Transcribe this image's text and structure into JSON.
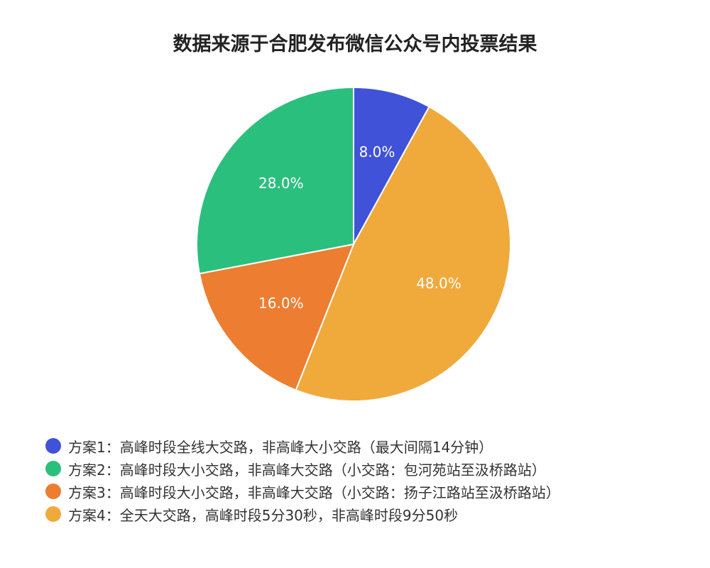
{
  "chart_data": {
    "type": "pie",
    "title": "数据来源于合肥发布微信公众号内投票结果",
    "slices": [
      {
        "label": "方案1：高峰时段全线大交路，非高峰大小交路（最大间隔14分钟）",
        "value": 8.0,
        "display": "8.0%",
        "color": "#4052d8"
      },
      {
        "label": "方案2：高峰时段大小交路，非高峰大交路（小交路：包河苑站至汲桥路站）",
        "value": 28.0,
        "display": "28.0%",
        "color": "#2bbf7e"
      },
      {
        "label": "方案3：高峰时段大小交路，非高峰大交路（小交路：扬子江路站至汲桥路站）",
        "value": 16.0,
        "display": "16.0%",
        "color": "#ed7d31"
      },
      {
        "label": "方案4：全天大交路，高峰时段5分30秒，非高峰时段9分50秒",
        "value": 48.0,
        "display": "48.0%",
        "color": "#f0a93b"
      }
    ],
    "draw_order": [
      0,
      3,
      2,
      1
    ],
    "legend_position": "bottom-left",
    "start_angle": "12 o'clock",
    "direction": "clockwise"
  }
}
